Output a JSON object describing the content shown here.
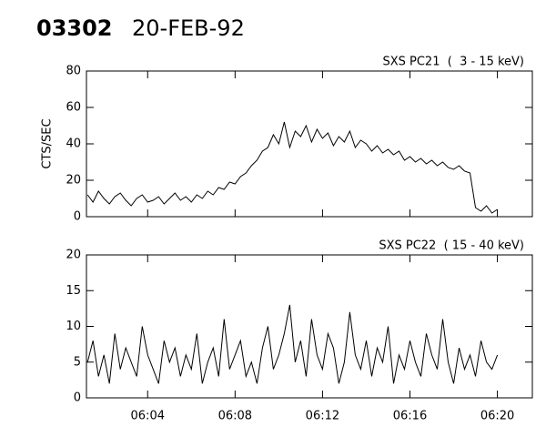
{
  "header": {
    "id": "03302",
    "date": "20-FEB-92"
  },
  "chart_data": [
    {
      "type": "line",
      "title": "SXS PC21  (  3 - 15 keV)",
      "y_label": "CTS/SEC",
      "color": "#000000",
      "x": [
        1.25,
        1.5,
        1.75,
        2.0,
        2.25,
        2.5,
        2.75,
        3.0,
        3.25,
        3.5,
        3.75,
        4.0,
        4.25,
        4.5,
        4.75,
        5.0,
        5.25,
        5.5,
        5.75,
        6.0,
        6.25,
        6.5,
        6.75,
        7.0,
        7.25,
        7.5,
        7.75,
        8.0,
        8.25,
        8.5,
        8.75,
        9.0,
        9.25,
        9.5,
        9.75,
        10.0,
        10.25,
        10.5,
        10.75,
        11.0,
        11.25,
        11.5,
        11.75,
        12.0,
        12.25,
        12.5,
        12.75,
        13.0,
        13.25,
        13.5,
        13.75,
        14.0,
        14.25,
        14.5,
        14.75,
        15.0,
        15.25,
        15.5,
        15.75,
        16.0,
        16.25,
        16.5,
        16.75,
        17.0,
        17.25,
        17.5,
        17.75,
        18.0,
        18.25,
        18.5,
        18.75,
        19.0,
        19.25,
        19.5,
        19.75,
        20.0
      ],
      "values": [
        12,
        8,
        14,
        10,
        7,
        11,
        13,
        9,
        6,
        10,
        12,
        8,
        9,
        11,
        7,
        10,
        13,
        9,
        11,
        8,
        12,
        10,
        14,
        12,
        16,
        15,
        19,
        18,
        22,
        24,
        28,
        31,
        36,
        38,
        45,
        40,
        52,
        38,
        47,
        44,
        50,
        41,
        48,
        43,
        46,
        39,
        44,
        41,
        47,
        38,
        42,
        40,
        36,
        39,
        35,
        37,
        34,
        36,
        31,
        33,
        30,
        32,
        29,
        31,
        28,
        30,
        27,
        26,
        28,
        25,
        24,
        5,
        3,
        6,
        2,
        4
      ],
      "xlim": [
        1.2,
        21.6
      ],
      "ylim": [
        0,
        80
      ],
      "yticks": [
        0,
        20,
        40,
        60,
        80
      ]
    },
    {
      "type": "line",
      "title": "SXS PC22  ( 15 - 40 keV)",
      "color": "#000000",
      "x": [
        1.25,
        1.5,
        1.75,
        2.0,
        2.25,
        2.5,
        2.75,
        3.0,
        3.25,
        3.5,
        3.75,
        4.0,
        4.25,
        4.5,
        4.75,
        5.0,
        5.25,
        5.5,
        5.75,
        6.0,
        6.25,
        6.5,
        6.75,
        7.0,
        7.25,
        7.5,
        7.75,
        8.0,
        8.25,
        8.5,
        8.75,
        9.0,
        9.25,
        9.5,
        9.75,
        10.0,
        10.25,
        10.5,
        10.75,
        11.0,
        11.25,
        11.5,
        11.75,
        12.0,
        12.25,
        12.5,
        12.75,
        13.0,
        13.25,
        13.5,
        13.75,
        14.0,
        14.25,
        14.5,
        14.75,
        15.0,
        15.25,
        15.5,
        15.75,
        16.0,
        16.25,
        16.5,
        16.75,
        17.0,
        17.25,
        17.5,
        17.75,
        18.0,
        18.25,
        18.5,
        18.75,
        19.0,
        19.25,
        19.5,
        19.75,
        20.0
      ],
      "values": [
        5,
        8,
        3,
        6,
        2,
        9,
        4,
        7,
        5,
        3,
        10,
        6,
        4,
        2,
        8,
        5,
        7,
        3,
        6,
        4,
        9,
        2,
        5,
        7,
        3,
        11,
        4,
        6,
        8,
        3,
        5,
        2,
        7,
        10,
        4,
        6,
        9,
        13,
        5,
        8,
        3,
        11,
        6,
        4,
        9,
        7,
        2,
        5,
        12,
        6,
        4,
        8,
        3,
        7,
        5,
        10,
        2,
        6,
        4,
        8,
        5,
        3,
        9,
        6,
        4,
        11,
        5,
        2,
        7,
        4,
        6,
        3,
        8,
        5,
        4,
        6
      ],
      "xlim": [
        1.2,
        21.6
      ],
      "ylim": [
        0,
        20
      ],
      "yticks": [
        0,
        5,
        10,
        15,
        20
      ],
      "xticks": [
        {
          "value": 4,
          "label": "06:04"
        },
        {
          "value": 8,
          "label": "06:08"
        },
        {
          "value": 12,
          "label": "06:12"
        },
        {
          "value": 16,
          "label": "06:16"
        },
        {
          "value": 20,
          "label": "06:20"
        }
      ]
    }
  ]
}
